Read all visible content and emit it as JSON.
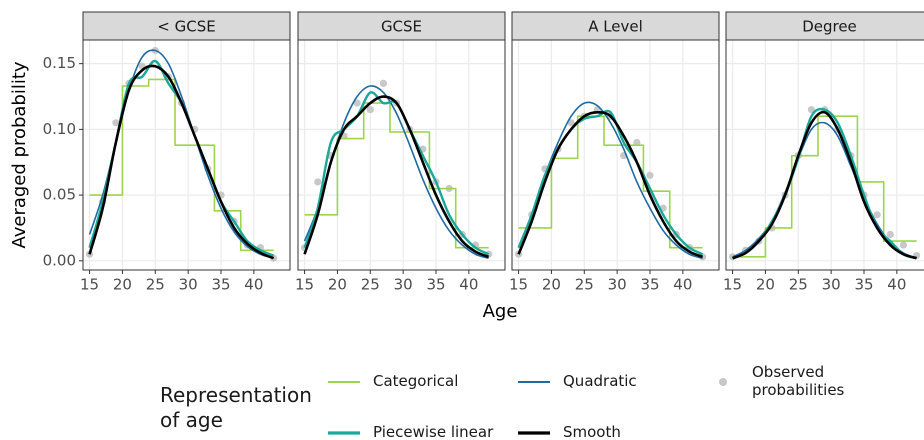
{
  "y_label": "Averaged probability",
  "x_label": "Age",
  "legend_title": "Representation of age",
  "chart_data": [
    {
      "type": "line",
      "title": "< GCSE",
      "x": [
        15,
        17,
        19,
        21,
        23,
        25,
        27,
        29,
        31,
        33,
        35,
        37,
        39,
        41,
        43
      ],
      "xlim": [
        14,
        45.5
      ],
      "xticks": [
        15,
        20,
        25,
        30,
        35,
        40
      ],
      "ylim": [
        -0.007,
        0.168
      ],
      "yticks": [
        {
          "value": 0,
          "label": "0.00"
        },
        {
          "value": 0.05,
          "label": "0.05"
        },
        {
          "value": 0.1,
          "label": "0.10"
        },
        {
          "value": 0.15,
          "label": "0.15"
        }
      ],
      "grid": true,
      "series": [
        {
          "name": "Observed probabilities",
          "color": "#c8c8c8",
          "style": "points",
          "values": [
            0.005,
            0.045,
            0.105,
            0.135,
            0.148,
            0.16,
            0.14,
            0.12,
            0.1,
            0.07,
            0.05,
            0.03,
            0.012,
            0.01,
            0.002
          ]
        },
        {
          "name": "Categorical",
          "color": "#9ed44a",
          "interpolation": "step-mid",
          "values": [
            0.05,
            0.05,
            0.05,
            0.133,
            0.133,
            0.138,
            0.138,
            0.088,
            0.088,
            0.088,
            0.038,
            0.038,
            0.008,
            0.008,
            0.008
          ]
        },
        {
          "name": "Quadratic",
          "color": "#1f6aa5",
          "values": [
            0.02,
            0.05,
            0.09,
            0.13,
            0.155,
            0.16,
            0.15,
            0.125,
            0.095,
            0.065,
            0.04,
            0.022,
            0.011,
            0.005,
            0.002
          ]
        },
        {
          "name": "Piecewise linear",
          "color": "#1aa89a",
          "values": [
            0.01,
            0.045,
            0.09,
            0.135,
            0.14,
            0.152,
            0.135,
            0.12,
            0.095,
            0.07,
            0.045,
            0.03,
            0.015,
            0.008,
            0.004
          ]
        },
        {
          "name": "Smooth",
          "color": "#000000",
          "values": [
            0.005,
            0.04,
            0.09,
            0.13,
            0.145,
            0.148,
            0.14,
            0.12,
            0.095,
            0.07,
            0.045,
            0.025,
            0.013,
            0.006,
            0.002
          ]
        }
      ]
    },
    {
      "type": "line",
      "title": "GCSE",
      "x": [
        15,
        17,
        19,
        21,
        23,
        25,
        27,
        29,
        31,
        33,
        35,
        37,
        39,
        41,
        43
      ],
      "xlim": [
        14,
        45.5
      ],
      "xticks": [
        15,
        20,
        25,
        30,
        35,
        40
      ],
      "ylim": [
        -0.007,
        0.168
      ],
      "yticks": [
        0,
        0.05,
        0.1,
        0.15
      ],
      "grid": true,
      "series": [
        {
          "name": "Observed probabilities",
          "color": "#c8c8c8",
          "style": "points",
          "values": [
            0.01,
            0.06,
            0.08,
            0.095,
            0.12,
            0.115,
            0.135,
            0.12,
            0.1,
            0.085,
            0.06,
            0.055,
            0.02,
            0.012,
            0.005
          ]
        },
        {
          "name": "Categorical",
          "color": "#9ed44a",
          "interpolation": "step-mid",
          "values": [
            0.035,
            0.035,
            0.035,
            0.093,
            0.093,
            0.12,
            0.12,
            0.098,
            0.098,
            0.098,
            0.055,
            0.055,
            0.01,
            0.01,
            0.01
          ]
        },
        {
          "name": "Quadratic",
          "color": "#1f6aa5",
          "values": [
            0.015,
            0.04,
            0.075,
            0.105,
            0.125,
            0.133,
            0.128,
            0.112,
            0.088,
            0.062,
            0.04,
            0.023,
            0.012,
            0.005,
            0.002
          ]
        },
        {
          "name": "Piecewise linear",
          "color": "#1aa89a",
          "values": [
            0.01,
            0.04,
            0.09,
            0.1,
            0.11,
            0.128,
            0.12,
            0.12,
            0.1,
            0.08,
            0.06,
            0.035,
            0.02,
            0.01,
            0.005
          ]
        },
        {
          "name": "Smooth",
          "color": "#000000",
          "values": [
            0.005,
            0.035,
            0.075,
            0.1,
            0.11,
            0.12,
            0.125,
            0.12,
            0.1,
            0.075,
            0.05,
            0.03,
            0.015,
            0.007,
            0.003
          ]
        }
      ]
    },
    {
      "type": "line",
      "title": "A Level",
      "x": [
        15,
        17,
        19,
        21,
        23,
        25,
        27,
        29,
        31,
        33,
        35,
        37,
        39,
        41,
        43
      ],
      "xlim": [
        14,
        45.5
      ],
      "xticks": [
        15,
        20,
        25,
        30,
        35,
        40
      ],
      "ylim": [
        -0.007,
        0.168
      ],
      "yticks": [
        0,
        0.05,
        0.1,
        0.15
      ],
      "grid": true,
      "series": [
        {
          "name": "Observed probabilities",
          "color": "#c8c8c8",
          "style": "points",
          "values": [
            0.005,
            0.035,
            0.07,
            0.085,
            0.105,
            0.11,
            0.115,
            0.11,
            0.08,
            0.09,
            0.065,
            0.04,
            0.02,
            0.01,
            0.003
          ]
        },
        {
          "name": "Categorical",
          "color": "#9ed44a",
          "interpolation": "step-mid",
          "values": [
            0.025,
            0.025,
            0.025,
            0.078,
            0.078,
            0.11,
            0.11,
            0.088,
            0.088,
            0.088,
            0.053,
            0.053,
            0.01,
            0.01,
            0.01
          ]
        },
        {
          "name": "Quadratic",
          "color": "#1f6aa5",
          "values": [
            0.01,
            0.035,
            0.065,
            0.09,
            0.11,
            0.12,
            0.118,
            0.105,
            0.085,
            0.06,
            0.04,
            0.023,
            0.012,
            0.005,
            0.002
          ]
        },
        {
          "name": "Piecewise linear",
          "color": "#1aa89a",
          "values": [
            0.01,
            0.035,
            0.065,
            0.085,
            0.1,
            0.108,
            0.11,
            0.113,
            0.09,
            0.075,
            0.055,
            0.035,
            0.02,
            0.01,
            0.005
          ]
        },
        {
          "name": "Smooth",
          "color": "#000000",
          "values": [
            0.005,
            0.03,
            0.06,
            0.085,
            0.1,
            0.11,
            0.113,
            0.11,
            0.095,
            0.075,
            0.05,
            0.03,
            0.015,
            0.007,
            0.003
          ]
        }
      ]
    },
    {
      "type": "line",
      "title": "Degree",
      "x": [
        15,
        17,
        19,
        21,
        23,
        25,
        27,
        29,
        31,
        33,
        35,
        37,
        39,
        41,
        43
      ],
      "xlim": [
        14,
        45.5
      ],
      "xticks": [
        15,
        20,
        25,
        30,
        35,
        40
      ],
      "ylim": [
        -0.007,
        0.168
      ],
      "yticks": [
        0,
        0.05,
        0.1,
        0.15
      ],
      "grid": true,
      "series": [
        {
          "name": "Observed probabilities",
          "color": "#c8c8c8",
          "style": "points",
          "values": [
            0.003,
            0.008,
            0.015,
            0.025,
            0.05,
            0.08,
            0.115,
            0.115,
            0.1,
            0.08,
            0.05,
            0.035,
            0.02,
            0.012,
            0.004
          ]
        },
        {
          "name": "Categorical",
          "color": "#9ed44a",
          "interpolation": "step-mid",
          "values": [
            0.003,
            0.003,
            0.003,
            0.025,
            0.025,
            0.08,
            0.08,
            0.11,
            0.11,
            0.11,
            0.06,
            0.06,
            0.015,
            0.015,
            0.015
          ]
        },
        {
          "name": "Quadratic",
          "color": "#1f6aa5",
          "values": [
            0.003,
            0.008,
            0.017,
            0.03,
            0.052,
            0.078,
            0.1,
            0.105,
            0.095,
            0.072,
            0.048,
            0.028,
            0.014,
            0.006,
            0.002
          ]
        },
        {
          "name": "Piecewise linear",
          "color": "#1aa89a",
          "values": [
            0.002,
            0.006,
            0.015,
            0.03,
            0.05,
            0.078,
            0.11,
            0.115,
            0.105,
            0.08,
            0.05,
            0.025,
            0.015,
            0.005,
            0.002
          ]
        },
        {
          "name": "Smooth",
          "color": "#000000",
          "values": [
            0.002,
            0.006,
            0.015,
            0.028,
            0.05,
            0.08,
            0.105,
            0.113,
            0.1,
            0.075,
            0.045,
            0.025,
            0.012,
            0.005,
            0.002
          ]
        }
      ]
    }
  ]
}
